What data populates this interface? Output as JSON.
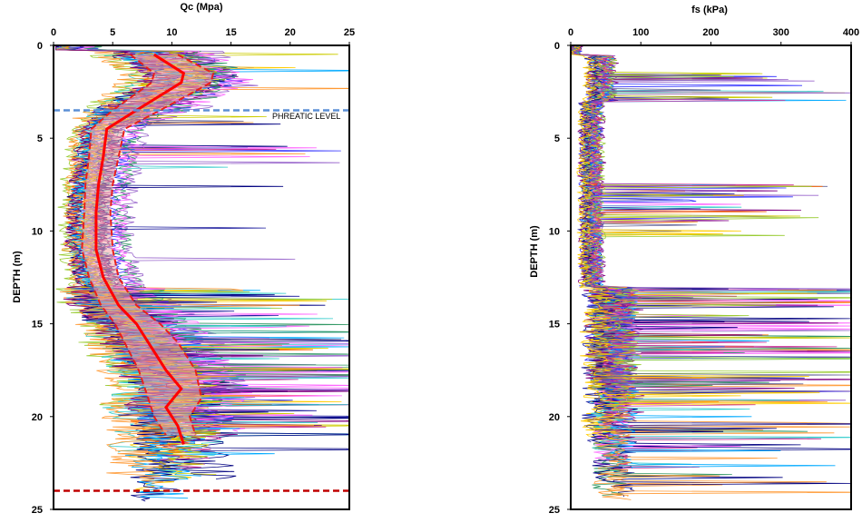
{
  "chart_data": [
    {
      "type": "line",
      "title": "Qc (Mpa)",
      "ylabel": "DEPTH (m)",
      "xlim": [
        0,
        25
      ],
      "ylim": [
        0,
        25
      ],
      "x_ticks": [
        "0",
        "5",
        "10",
        "15",
        "20",
        "25"
      ],
      "y_ticks": [
        "0",
        "5",
        "10",
        "15",
        "20",
        "25"
      ],
      "x_axis_position": "top",
      "y_inverted": true,
      "annotations": {
        "phreatic_label": "PHREATIC LEVEL",
        "phreatic_depth": 3.5,
        "bottom_dashed_depth": 24.0
      },
      "colors": {
        "mean": "#ff0000",
        "bounds": "#e8201c",
        "band": "#f4a6a6",
        "phreatic": "#5b8fd6",
        "bottom": "#c00000"
      },
      "series": [
        {
          "name": "",
          "role": "mean",
          "x": [
            8.5,
            11,
            10.8,
            7,
            4.5,
            4.2,
            3.8,
            3.6,
            3.6,
            4.2,
            5.5,
            7,
            8,
            9.5,
            10.8,
            9.5,
            10.5,
            11
          ],
          "y": [
            0.5,
            1.5,
            2.0,
            3.5,
            4.5,
            6,
            7.5,
            9,
            11,
            12.5,
            14,
            15,
            16,
            17.5,
            18.5,
            19.5,
            20.5,
            21.5
          ]
        },
        {
          "name": "",
          "role": "upper",
          "x": [
            10.5,
            13.5,
            13.3,
            9,
            6,
            5.5,
            5,
            4.8,
            5,
            5.5,
            7,
            9,
            10.5,
            12,
            12.5,
            11.5,
            12
          ],
          "y": [
            0.5,
            1.5,
            2.0,
            3.5,
            4.5,
            6,
            7.5,
            9,
            11,
            12.5,
            14,
            15,
            16,
            17.5,
            19,
            20,
            21
          ]
        },
        {
          "name": "",
          "role": "lower",
          "x": [
            6.5,
            8.5,
            8.3,
            5,
            3.2,
            3.0,
            2.7,
            2.6,
            2.4,
            3.0,
            4.0,
            5.2,
            6,
            7.2,
            8,
            8.5,
            9.5
          ],
          "y": [
            0.5,
            1.5,
            2.0,
            3.5,
            4.5,
            6,
            7.5,
            9,
            11,
            12.5,
            14,
            15,
            16,
            17.5,
            19,
            20,
            21
          ]
        }
      ]
    },
    {
      "type": "line",
      "title": "fs (kPa)",
      "ylabel": "DEPTH (m)",
      "xlim": [
        0,
        400
      ],
      "ylim": [
        0,
        25
      ],
      "x_ticks": [
        "0",
        "100",
        "200",
        "300",
        "400"
      ],
      "y_ticks": [
        "0",
        "5",
        "10",
        "15",
        "20",
        "25"
      ],
      "x_axis_position": "top",
      "y_inverted": true
    }
  ],
  "trace_colors": [
    "#1f1f9f",
    "#ff6600",
    "#ff66ff",
    "#33cccc",
    "#cccc00",
    "#000080",
    "#9966cc",
    "#00aaff",
    "#ff9933",
    "#800080",
    "#3333ff",
    "#99cc33",
    "#cc3399",
    "#666699",
    "#ffcc00",
    "#339966"
  ]
}
